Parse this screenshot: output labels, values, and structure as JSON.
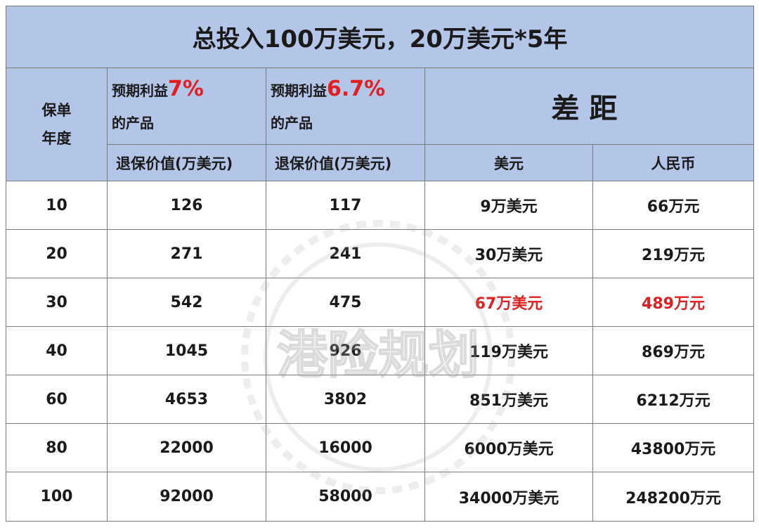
{
  "title": "总投入100万美元，20万美元*5年",
  "header": {
    "year_line1": "保单",
    "year_line2": "年度",
    "product_a": {
      "prefix": "预期利益",
      "rate": "7%",
      "suffix": "的产品",
      "sub": "退保价值(万美元)"
    },
    "product_b": {
      "prefix": "预期利益",
      "rate": "6.7%",
      "suffix": "的产品",
      "sub": "退保价值(万美元)"
    },
    "gap": "差距",
    "gap_usd": "美元",
    "gap_rmb": "人民币"
  },
  "rows": [
    {
      "year": "10",
      "a": "126",
      "b": "117",
      "usd": "9万美元",
      "rmb": "66万元"
    },
    {
      "year": "20",
      "a": "271",
      "b": "241",
      "usd": "30万美元",
      "rmb": "219万元"
    },
    {
      "year": "30",
      "a": "542",
      "b": "475",
      "usd": "67万美元",
      "rmb": "489万元"
    },
    {
      "year": "40",
      "a": "1045",
      "b": "926",
      "usd": "119万美元",
      "rmb": "869万元"
    },
    {
      "year": "60",
      "a": "4653",
      "b": "3802",
      "usd": "851万美元",
      "rmb": "6212万元"
    },
    {
      "year": "80",
      "a": "22000",
      "b": "16000",
      "usd": "6000万美元",
      "rmb": "43800万元"
    },
    {
      "year": "100",
      "a": "92000",
      "b": "58000",
      "usd": "34000万美元",
      "rmb": "248200万元"
    }
  ],
  "highlight_color": "#e02020",
  "header_bg": "#b4c6e7",
  "watermark": "港险规划"
}
